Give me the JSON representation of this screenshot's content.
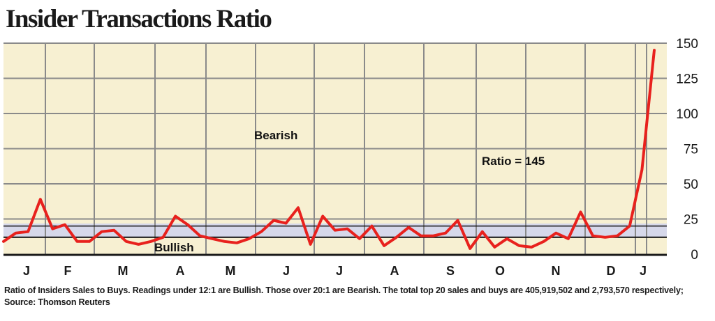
{
  "chart_data": {
    "type": "line",
    "title": "Insider Transactions Ratio",
    "footnote": "Ratio of Insiders Sales to Buys. Readings under 12:1 are Bullish. Those over 20:1 are Bearish. The total top 20 sales and buys are 405,919,502 and 2,793,570 respectively; Source: Thomson Reuters",
    "ylim": [
      0,
      150
    ],
    "yticks": [
      0,
      25,
      50,
      75,
      100,
      125,
      150
    ],
    "month_labels": [
      "J",
      "F",
      "M",
      "A",
      "M",
      "J",
      "J",
      "A",
      "S",
      "O",
      "N",
      "D",
      "J"
    ],
    "bullish_threshold": 12,
    "bearish_threshold": 20,
    "annotations": {
      "bearish": "Bearish",
      "bullish": "Bullish",
      "ratio": "Ratio = 145"
    },
    "series": [
      {
        "values": [
          9,
          15,
          16,
          39,
          18,
          21,
          9,
          9,
          16,
          17,
          9,
          7,
          9,
          12,
          27,
          21,
          13,
          11,
          9,
          8,
          11,
          16,
          24,
          22,
          33,
          7,
          27,
          17,
          18,
          11,
          20,
          6,
          12,
          19,
          13,
          13,
          15,
          24,
          4,
          16,
          5,
          11,
          6,
          5,
          9,
          15,
          11,
          30,
          13,
          12,
          13,
          20,
          60,
          145
        ],
        "color": "#e8211d"
      }
    ],
    "colors": {
      "plot_bg": "#f7f0d2",
      "band": "#d6d8ea",
      "line": "#e8211d",
      "grid": "#8a8a8a",
      "threshold": "#111111"
    }
  }
}
